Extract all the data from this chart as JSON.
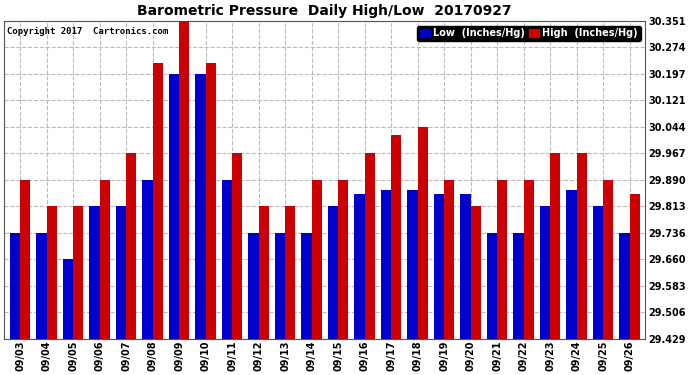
{
  "title": "Barometric Pressure  Daily High/Low  20170927",
  "copyright_text": "Copyright 2017  Cartronics.com",
  "legend_low": "Low  (Inches/Hg)",
  "legend_high": "High  (Inches/Hg)",
  "low_color": "#0000cc",
  "high_color": "#cc0000",
  "background_color": "#ffffff",
  "ylim_min": 29.429,
  "ylim_max": 30.351,
  "yticks": [
    29.429,
    29.506,
    29.583,
    29.66,
    29.736,
    29.813,
    29.89,
    29.967,
    30.044,
    30.121,
    30.197,
    30.274,
    30.351
  ],
  "dates": [
    "09/03",
    "09/04",
    "09/05",
    "09/06",
    "09/07",
    "09/08",
    "09/09",
    "09/10",
    "09/11",
    "09/12",
    "09/13",
    "09/14",
    "09/15",
    "09/16",
    "09/17",
    "09/18",
    "09/19",
    "09/20",
    "09/21",
    "09/22",
    "09/23",
    "09/24",
    "09/25",
    "09/26"
  ],
  "low_values": [
    29.736,
    29.736,
    29.66,
    29.813,
    29.813,
    29.89,
    30.197,
    30.197,
    29.89,
    29.736,
    29.736,
    29.736,
    29.813,
    29.85,
    29.86,
    29.86,
    29.85,
    29.85,
    29.736,
    29.736,
    29.813,
    29.86,
    29.813,
    29.736
  ],
  "high_values": [
    29.89,
    29.813,
    29.813,
    29.89,
    29.967,
    30.228,
    30.351,
    30.228,
    29.967,
    29.813,
    29.813,
    29.89,
    29.89,
    29.967,
    30.02,
    30.044,
    29.89,
    29.813,
    29.89,
    29.89,
    29.967,
    29.967,
    29.89,
    29.85
  ],
  "figwidth": 6.9,
  "figheight": 3.75,
  "dpi": 100,
  "bar_width": 0.38,
  "title_fontsize": 10,
  "tick_fontsize": 7,
  "legend_fontsize": 7
}
